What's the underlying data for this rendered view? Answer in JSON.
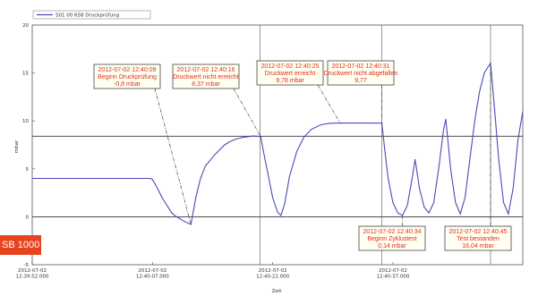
{
  "chart_data": {
    "type": "line",
    "title": "",
    "xlabel": "Zeit",
    "ylabel": "mbar",
    "ylim": [
      -5,
      20
    ],
    "yticks": [
      -5,
      0,
      5,
      10,
      15,
      20
    ],
    "xlim": [
      0,
      102
    ],
    "xticks": [
      {
        "x": 0,
        "label": [
          "2012-07-02",
          "12:39:52.000"
        ]
      },
      {
        "x": 25,
        "label": [
          "2012-07-02",
          "12:40:07.000"
        ]
      },
      {
        "x": 50,
        "label": [
          "2012-07-02",
          "12:40:22.000"
        ]
      },
      {
        "x": 75,
        "label": [
          "2012-07-02",
          "12:40:37.000"
        ]
      }
    ],
    "grid": false,
    "legend_position": "top-left",
    "series": [
      {
        "name": "S01 00 658 Druckprüfung",
        "color": "#4a4ab8",
        "points": [
          [
            0,
            4
          ],
          [
            24.5,
            4
          ],
          [
            25,
            3.9
          ],
          [
            26,
            3
          ],
          [
            27,
            2
          ],
          [
            28,
            1.2
          ],
          [
            29,
            0.4
          ],
          [
            30,
            0
          ],
          [
            31.5,
            -0.45
          ],
          [
            33,
            -0.8
          ],
          [
            33.4,
            0.3
          ],
          [
            34,
            2
          ],
          [
            35,
            4
          ],
          [
            36,
            5.3
          ],
          [
            37,
            5.9
          ],
          [
            38,
            6.5
          ],
          [
            39,
            7
          ],
          [
            40,
            7.5
          ],
          [
            41,
            7.8
          ],
          [
            42,
            8.05
          ],
          [
            44,
            8.3
          ],
          [
            46,
            8.42
          ],
          [
            47.5,
            8.37
          ],
          [
            48,
            7
          ],
          [
            49,
            4.5
          ],
          [
            50,
            2
          ],
          [
            51,
            0.5
          ],
          [
            51.7,
            0.14
          ],
          [
            52.5,
            1.4
          ],
          [
            53.5,
            4.2
          ],
          [
            55,
            6.8
          ],
          [
            56.5,
            8.3
          ],
          [
            58,
            9.1
          ],
          [
            60,
            9.6
          ],
          [
            62,
            9.76
          ],
          [
            64,
            9.78
          ],
          [
            70,
            9.78
          ],
          [
            72.7,
            9.77
          ],
          [
            73.3,
            7
          ],
          [
            74,
            4
          ],
          [
            75,
            1.5
          ],
          [
            76,
            0.4
          ],
          [
            77,
            0.14
          ],
          [
            78,
            1.2
          ],
          [
            79,
            4
          ],
          [
            79.6,
            6
          ],
          [
            80.5,
            3
          ],
          [
            81.5,
            1
          ],
          [
            82.5,
            0.4
          ],
          [
            83.5,
            1.5
          ],
          [
            84.5,
            5
          ],
          [
            85.5,
            9
          ],
          [
            86,
            10.2
          ],
          [
            87,
            5
          ],
          [
            88,
            1.5
          ],
          [
            89,
            0.3
          ],
          [
            90,
            2
          ],
          [
            91,
            6
          ],
          [
            92,
            10
          ],
          [
            93,
            13
          ],
          [
            94,
            15
          ],
          [
            95.3,
            16.04
          ],
          [
            96,
            12
          ],
          [
            97,
            6
          ],
          [
            98,
            1.5
          ],
          [
            99,
            0.3
          ],
          [
            100,
            3
          ],
          [
            101,
            8
          ],
          [
            102,
            11
          ]
        ]
      }
    ],
    "reference_lines": [
      {
        "axis": "y",
        "value": 8.4
      },
      {
        "axis": "y",
        "value": 0
      },
      {
        "axis": "x",
        "value": 47.4
      },
      {
        "axis": "x",
        "value": 72.7
      },
      {
        "axis": "x",
        "value": 95.3
      }
    ],
    "annotations": [
      {
        "id": "a1",
        "lines": [
          "2012-07-02 12:40:09",
          "Beginn Druckprüfung",
          "-0,8 mbar"
        ],
        "anchor": [
          33,
          -0.8
        ]
      },
      {
        "id": "a2",
        "lines": [
          "2012-07-02 12:40:16",
          "Druckwert nicht erreicht",
          "8,37 mbar"
        ],
        "anchor": [
          47.5,
          8.37
        ]
      },
      {
        "id": "a3",
        "lines": [
          "2012-07-02 12:40:25",
          "Druckwert erreicht",
          "9,78 mbar"
        ],
        "anchor": [
          64,
          9.78
        ]
      },
      {
        "id": "a4",
        "lines": [
          "2012-07-02 12:40:31",
          "Druckwert nicht abgefallen",
          "9,77"
        ],
        "anchor": [
          72.7,
          9.77
        ]
      },
      {
        "id": "a5",
        "lines": [
          "2012-07-02 12:40:34",
          "Beginn Zyklustest",
          "0,14 mbar"
        ],
        "anchor": [
          77,
          0.14
        ]
      },
      {
        "id": "a6",
        "lines": [
          "2012-07-02 12:40:45",
          "Test bestanden",
          "16,04 mbar"
        ],
        "anchor": [
          95.3,
          16.04
        ]
      }
    ]
  },
  "brand": {
    "label": "SB 1000",
    "color": "#e8431f"
  }
}
